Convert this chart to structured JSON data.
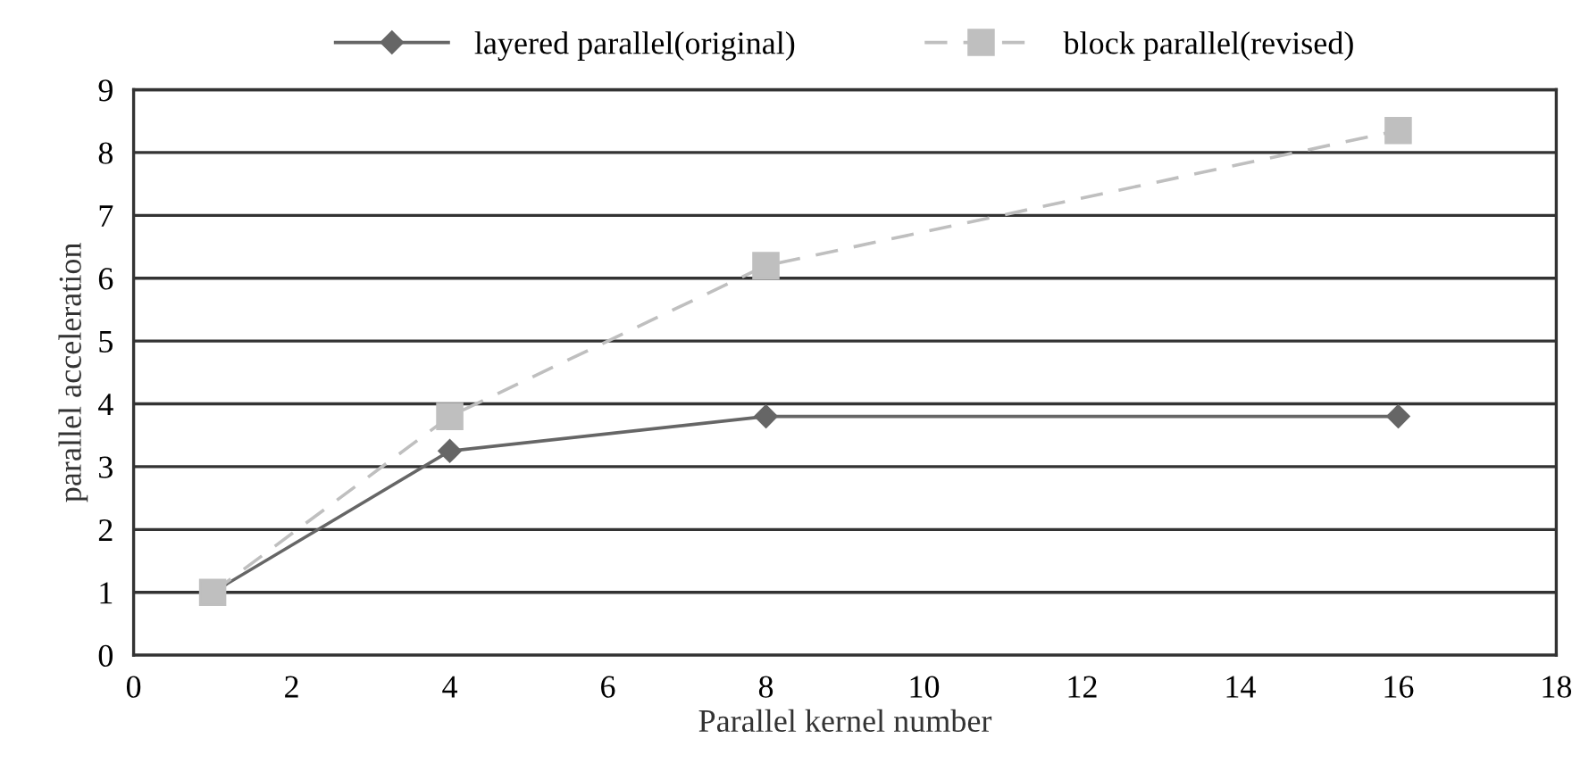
{
  "chart_data": {
    "type": "line",
    "xlabel": "Parallel kernel number",
    "ylabel": "parallel acceleration",
    "xlim": [
      0,
      18
    ],
    "xticks": [
      0,
      2,
      4,
      6,
      8,
      10,
      12,
      14,
      16,
      18
    ],
    "ylim": [
      0,
      9
    ],
    "yticks": [
      0,
      1,
      2,
      3,
      4,
      5,
      6,
      7,
      8,
      9
    ],
    "grid": "y",
    "legend": "top",
    "series": [
      {
        "name": "layered parallel(original)",
        "color": "#666666",
        "x": [
          1,
          4,
          8,
          16
        ],
        "values": [
          1,
          3.25,
          3.8,
          3.8
        ],
        "marker": "diamond",
        "line_style": "solid"
      },
      {
        "name": "block parallel(revised)",
        "color": "#bfbfbf",
        "x": [
          1,
          4,
          8,
          16
        ],
        "values": [
          1,
          3.8,
          6.2,
          8.35
        ],
        "marker": "square",
        "line_style": "dashed"
      }
    ]
  }
}
